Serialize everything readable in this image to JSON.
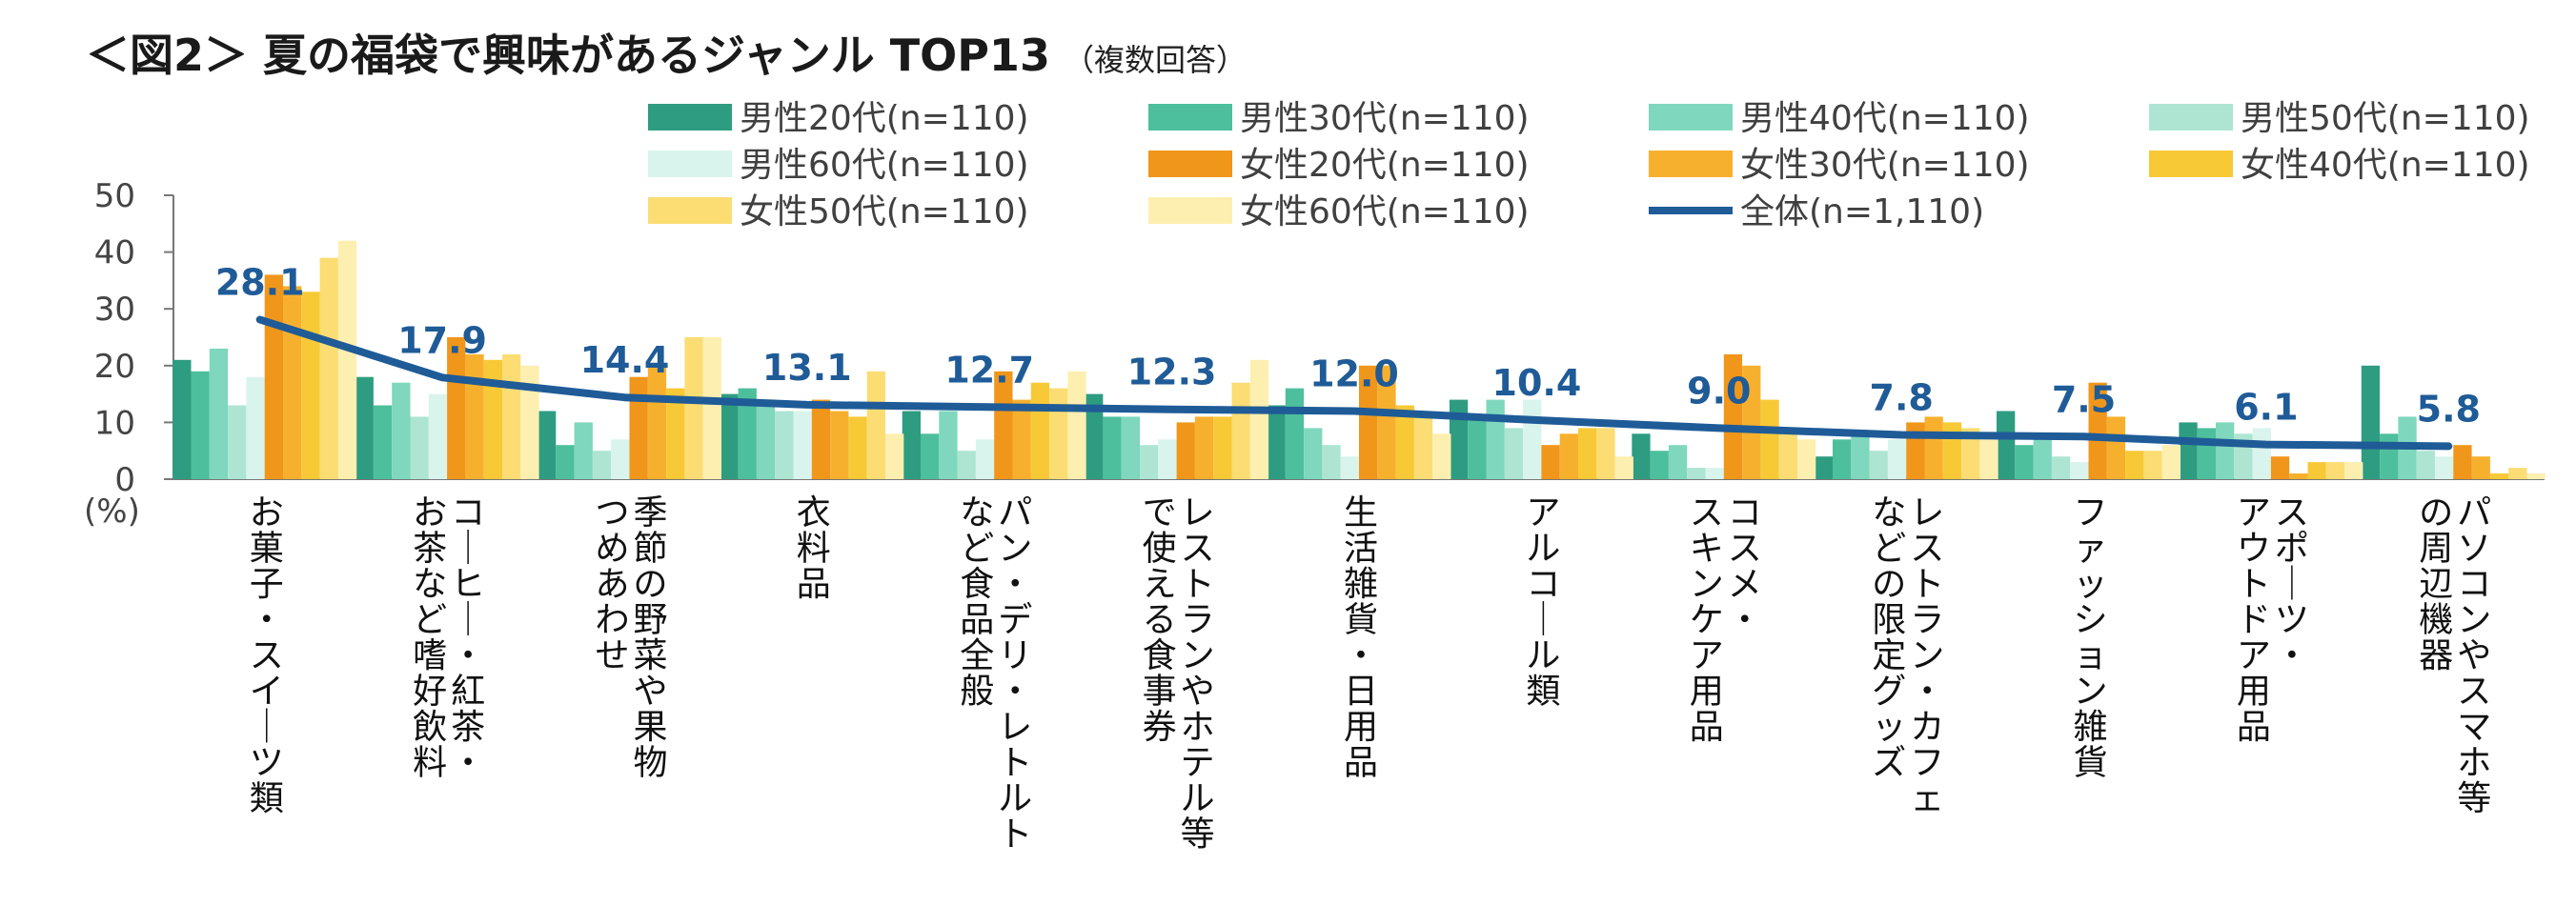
{
  "title": "＜図2＞ 夏の福袋で興味があるジャンル TOP13",
  "subtitle": "（複数回答）",
  "chart_data": {
    "type": "bar",
    "title": "＜図2＞ 夏の福袋で興味があるジャンル TOP13",
    "subtitle": "（複数回答）",
    "ylabel": "(%)",
    "ylim": [
      0,
      50
    ],
    "yticks": [
      "0",
      "10",
      "20",
      "30",
      "40",
      "50"
    ],
    "categories": [
      "お菓子・スイーツ類",
      "コーヒー・紅茶・\nお茶など嗜好飲料",
      "季節の野菜や果物\nつめあわせ",
      "衣料品",
      "パン・デリ・レトルト\nなど食品全般",
      "レストランやホテル等\nで使える食事券",
      "生活雑貨・日用品",
      "アルコール類",
      "コスメ・\nスキンケア用品",
      "レストラン・カフェ\nなどの限定グッズ",
      "ファッション雑貨",
      "スポーツ・\nアウトドア用品",
      "パソコンやスマホ等\nの周辺機器"
    ],
    "series": [
      {
        "name": "男性20代(n=110)",
        "color": "#2e9c80",
        "values": [
          21,
          18,
          12,
          15,
          12,
          15,
          13,
          14,
          8,
          4,
          12,
          10,
          20
        ]
      },
      {
        "name": "男性30代(n=110)",
        "color": "#4dbf9c",
        "values": [
          19,
          13,
          6,
          16,
          8,
          11,
          16,
          11,
          5,
          7,
          6,
          9,
          8
        ]
      },
      {
        "name": "男性40代(n=110)",
        "color": "#7fd7bd",
        "values": [
          23,
          17,
          10,
          14,
          12,
          11,
          9,
          14,
          6,
          8,
          7,
          10,
          11
        ]
      },
      {
        "name": "男性50代(n=110)",
        "color": "#ade5d2",
        "values": [
          13,
          11,
          5,
          12,
          5,
          6,
          6,
          9,
          2,
          5,
          4,
          8,
          5
        ]
      },
      {
        "name": "男性60代(n=110)",
        "color": "#d9f4ec",
        "values": [
          18,
          15,
          7,
          12,
          7,
          7,
          4,
          14,
          2,
          7,
          3,
          9,
          4
        ]
      },
      {
        "name": "女性20代(n=110)",
        "color": "#f0961a",
        "values": [
          36,
          25,
          18,
          14,
          19,
          10,
          20,
          6,
          22,
          10,
          17,
          4,
          6
        ]
      },
      {
        "name": "女性30代(n=110)",
        "color": "#f7b02e",
        "values": [
          34,
          22,
          20,
          12,
          14,
          11,
          20,
          8,
          20,
          11,
          11,
          1,
          4
        ]
      },
      {
        "name": "女性40代(n=110)",
        "color": "#f8c936",
        "values": [
          33,
          21,
          16,
          11,
          17,
          11,
          13,
          9,
          14,
          10,
          5,
          3,
          1
        ]
      },
      {
        "name": "女性50代(n=110)",
        "color": "#fbdd74",
        "values": [
          39,
          22,
          25,
          19,
          16,
          17,
          12,
          9,
          8,
          9,
          5,
          3,
          2
        ]
      },
      {
        "name": "女性60代(n=110)",
        "color": "#fdefb0",
        "values": [
          42,
          20,
          25,
          8,
          19,
          21,
          8,
          4,
          7,
          7,
          6,
          3,
          1
        ]
      }
    ],
    "line": {
      "name": "全体(n=1,110)",
      "color": "#1f5b97",
      "values": [
        28.1,
        17.9,
        14.4,
        13.1,
        12.7,
        12.3,
        12.0,
        10.4,
        9.0,
        7.8,
        7.5,
        6.1,
        5.8
      ]
    },
    "data_labels": [
      "28.1",
      "17.9",
      "14.4",
      "13.1",
      "12.7",
      "12.3",
      "12.0",
      "10.4",
      "9.0",
      "7.8",
      "7.5",
      "6.1",
      "5.8"
    ],
    "legend": "top-right",
    "grid": false
  }
}
